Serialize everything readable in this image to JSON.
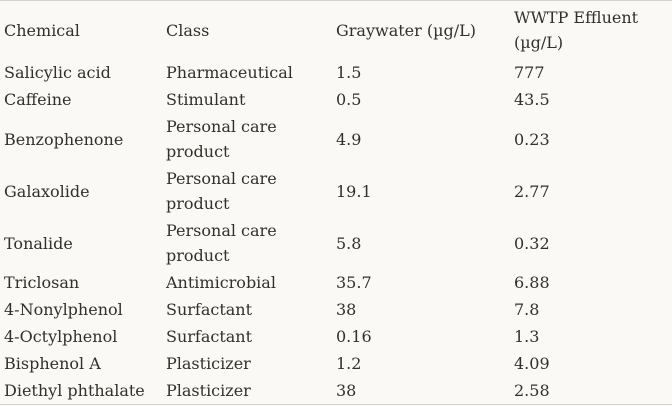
{
  "chart_data": {
    "type": "table",
    "title": "",
    "columns": [
      "Chemical",
      "Class",
      "Graywater (µg/L)",
      "WWTP Effluent (µg/L)"
    ],
    "rows": [
      [
        "Salicylic acid",
        "Pharmaceutical",
        "1.5",
        "777"
      ],
      [
        "Caffeine",
        "Stimulant",
        "0.5",
        "43.5"
      ],
      [
        "Benzophenone",
        "Personal care product",
        "4.9",
        "0.23"
      ],
      [
        "Galaxolide",
        "Personal care product",
        "19.1",
        "2.77"
      ],
      [
        "Tonalide",
        "Personal care product",
        "5.8",
        "0.32"
      ],
      [
        "Triclosan",
        "Antimicrobial",
        "35.7",
        "6.88"
      ],
      [
        "4-Nonylphenol",
        "Surfactant",
        "38",
        "7.8"
      ],
      [
        "4-Octylphenol",
        "Surfactant",
        "0.16",
        "1.3"
      ],
      [
        "Bisphenol A",
        "Plasticizer",
        "1.2",
        "4.09"
      ],
      [
        "Diethyl phthalate",
        "Plasticizer",
        "38",
        "2.58"
      ]
    ],
    "units": "µg/L",
    "layout": {
      "grid": false,
      "header_lines": [
        "top-border",
        "bottom-border"
      ]
    }
  },
  "colors": {
    "background": "#faf9f5",
    "text": "#333029",
    "border": "#d6d4cf"
  }
}
